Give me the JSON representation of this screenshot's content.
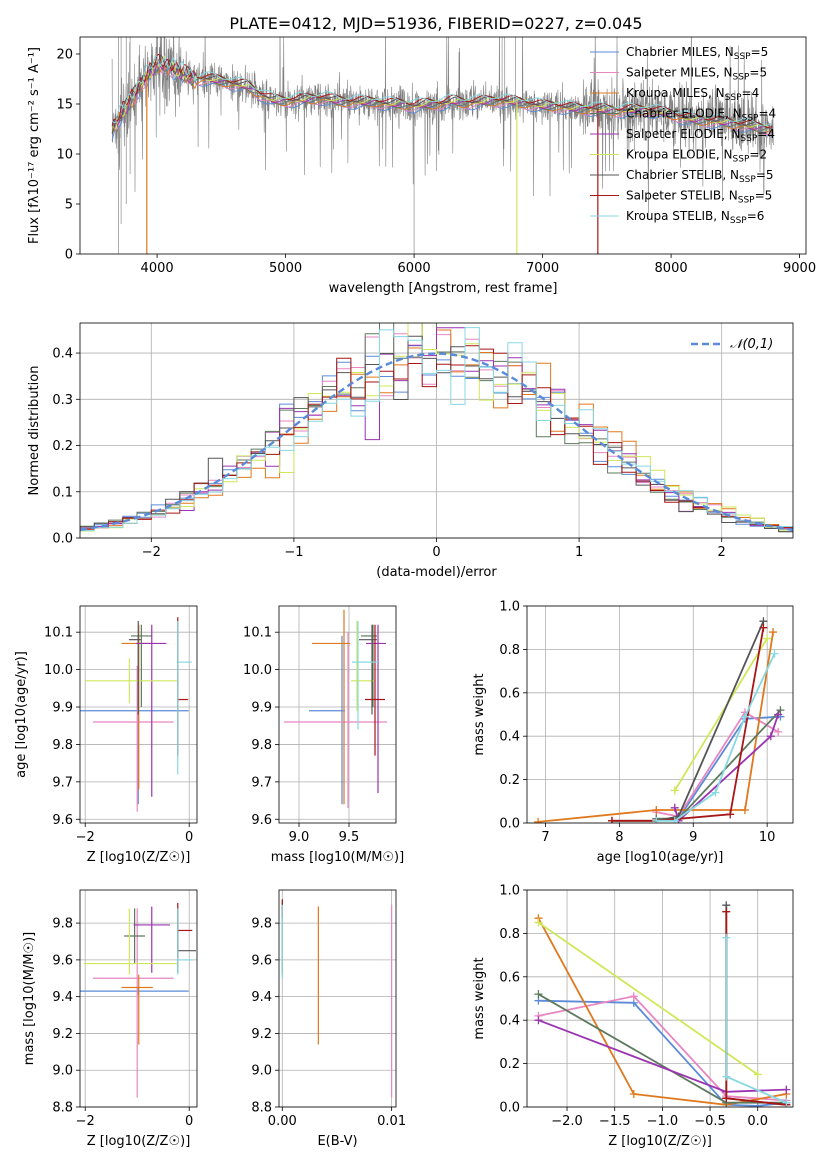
{
  "figure_title": "PLATE=0412, MJD=51936, FIBERID=0227, z=0.045",
  "colors": {
    "Chabrier MILES": "#5b8bd8",
    "Salpeter MILES": "#e886c2",
    "Kroupa MILES": "#e0781e",
    "Chabrier ELODIE": "#5e7a5e",
    "Salpeter ELODIE": "#9b34b0",
    "Kroupa ELODIE": "#cfe85a",
    "Chabrier STELIB": "#555555",
    "Salpeter STELIB": "#a81616",
    "Kroupa STELIB": "#86d8e2"
  },
  "chart_data": [
    {
      "id": "spectrum",
      "type": "line",
      "title": "PLATE=0412, MJD=51936, FIBERID=0227, z=0.045",
      "xlabel": "wavelength [Angstrom, rest frame]",
      "ylabel": "Flux [fλ10⁻¹⁷ erg cm⁻² s⁻¹ A⁻¹]",
      "xlim": [
        3400,
        9050
      ],
      "ylim": [
        0,
        21.7
      ],
      "xticks": [
        4000,
        5000,
        6000,
        7000,
        8000,
        9000
      ],
      "yticks": [
        0,
        5,
        10,
        15,
        20
      ],
      "legend_position": "top-right",
      "legend": [
        {
          "label": "Chabrier MILES, N",
          "sub": "SSP",
          "n": "=5",
          "series": "Chabrier MILES"
        },
        {
          "label": "Salpeter MILES, N",
          "sub": "SSP",
          "n": "=5",
          "series": "Salpeter MILES"
        },
        {
          "label": "Kroupa MILES, N",
          "sub": "SSP",
          "n": "=4",
          "series": "Kroupa MILES"
        },
        {
          "label": "Chabrier ELODIE, N",
          "sub": "SSP",
          "n": "=4",
          "series": "Chabrier ELODIE"
        },
        {
          "label": "Salpeter ELODIE, N",
          "sub": "SSP",
          "n": "=4",
          "series": "Salpeter ELODIE"
        },
        {
          "label": "Kroupa ELODIE, N",
          "sub": "SSP",
          "n": "=2",
          "series": "Kroupa ELODIE"
        },
        {
          "label": "Chabrier STELIB, N",
          "sub": "SSP",
          "n": "=5",
          "series": "Chabrier STELIB"
        },
        {
          "label": "Salpeter STELIB, N",
          "sub": "SSP",
          "n": "=5",
          "series": "Salpeter STELIB"
        },
        {
          "label": "Kroupa STELIB, N",
          "sub": "SSP",
          "n": "=6",
          "series": "Kroupa STELIB"
        }
      ],
      "data_color": "#808080",
      "data_envelope": {
        "wavelength": [
          3650,
          3700,
          3800,
          3900,
          4000,
          4100,
          4200,
          4300,
          4400,
          4500,
          4600,
          4700,
          4800,
          4900,
          5000,
          5100,
          5200,
          5300,
          5400,
          5500,
          5600,
          5700,
          5800,
          5900,
          6000,
          6100,
          6200,
          6300,
          6400,
          6500,
          6600,
          6700,
          6800,
          6900,
          7000,
          7100,
          7200,
          7300,
          7400,
          7500,
          7600,
          7700,
          7800,
          7900,
          8000,
          8100,
          8200,
          8300,
          8400,
          8500,
          8600,
          8700,
          8800
        ],
        "flux": [
          12.5,
          13.5,
          15.5,
          17.5,
          19.0,
          18.8,
          18.0,
          17.5,
          17.5,
          17.3,
          17.0,
          16.8,
          16.0,
          15.4,
          15.3,
          15.4,
          15.5,
          15.6,
          15.3,
          15.2,
          15.2,
          15.2,
          15.0,
          15.0,
          14.8,
          15.0,
          15.0,
          15.3,
          15.1,
          15.2,
          15.3,
          15.3,
          15.2,
          15.0,
          14.8,
          14.8,
          14.6,
          14.5,
          14.5,
          14.4,
          14.3,
          14.4,
          14.4,
          14.2,
          14.0,
          13.6,
          13.4,
          13.3,
          13.2,
          13.0,
          12.8,
          12.6,
          12.5
        ]
      },
      "model_dropouts": [
        {
          "series": "Kroupa MILES",
          "wavelength": 3920
        },
        {
          "series": "Kroupa ELODIE",
          "wavelength": 6800
        },
        {
          "series": "Salpeter STELIB",
          "wavelength": 7430
        }
      ]
    },
    {
      "id": "residuals",
      "type": "step",
      "xlabel": "(data-model)/error",
      "ylabel": "Normed distribution",
      "xlim": [
        -2.5,
        2.5
      ],
      "ylim": [
        0,
        0.465
      ],
      "xticks": [
        -2,
        -1,
        0,
        1,
        2
      ],
      "yticks": [
        0.0,
        0.1,
        0.2,
        0.3,
        0.4
      ],
      "legend": [
        {
          "label": "𝒩(0,1)",
          "style": "dashed",
          "color": "#5b8bd8"
        }
      ],
      "legend_position": "top-right",
      "reference_curve": "standard normal N(0,1)",
      "bin_width": 0.1
    },
    {
      "id": "age-vs-Z",
      "type": "scatter",
      "xlabel": "Z [log10(Z/Z☉)]",
      "ylabel": "age  [log10(age/yr)]",
      "xlim": [
        -2.1,
        0.15
      ],
      "ylim": [
        9.59,
        10.17
      ],
      "xticks": [
        -2,
        0
      ],
      "yticks": [
        9.6,
        9.7,
        9.8,
        9.9,
        10.0,
        10.1
      ],
      "points": [
        {
          "series": "Chabrier MILES",
          "x": -0.98,
          "xerr": [
            1.12,
            0.97
          ],
          "y": 9.89,
          "yerr": [
            0.25,
            0.2
          ]
        },
        {
          "series": "Salpeter MILES",
          "x": -1.0,
          "xerr": [
            0.85,
            0.7
          ],
          "y": 9.86,
          "yerr": [
            0.24,
            0.15
          ]
        },
        {
          "series": "Kroupa MILES",
          "x": -0.97,
          "xerr": [
            0.33,
            0.27
          ],
          "y": 10.07,
          "yerr": [
            0.39,
            0.05
          ]
        },
        {
          "series": "Chabrier ELODIE",
          "x": -0.92,
          "xerr": [
            0.2,
            0.2
          ],
          "y": 10.09,
          "yerr": [
            0.19,
            0.03
          ]
        },
        {
          "series": "Salpeter ELODIE",
          "x": -0.72,
          "xerr": [
            0.3,
            0.28
          ],
          "y": 10.07,
          "yerr": [
            0.41,
            0.05
          ]
        },
        {
          "series": "Kroupa ELODIE",
          "x": -1.15,
          "xerr": [
            0.85,
            0.93
          ],
          "y": 9.97,
          "yerr": [
            0.06,
            0.06
          ]
        },
        {
          "series": "Chabrier STELIB",
          "x": -0.98,
          "xerr": [
            0.18,
            0.05
          ],
          "y": 10.08,
          "yerr": [
            0.2,
            0.05
          ]
        },
        {
          "series": "Salpeter STELIB",
          "x": -0.22,
          "xerr": [
            0.0,
            0.2
          ],
          "y": 9.92,
          "yerr": [
            0.15,
            0.22
          ]
        },
        {
          "series": "Kroupa STELIB",
          "x": -0.22,
          "xerr": [
            0.0,
            0.27
          ],
          "y": 10.02,
          "yerr": [
            0.3,
            0.11
          ]
        }
      ]
    },
    {
      "id": "age-vs-mass",
      "type": "scatter",
      "xlabel": "mass [log10(M/M☉)]",
      "ylabel": "",
      "xlim": [
        8.8,
        9.97
      ],
      "ylim": [
        9.59,
        10.17
      ],
      "xticks": [
        9.0,
        9.5
      ],
      "yticks": [
        9.6,
        9.7,
        9.8,
        9.9,
        10.0,
        10.1
      ],
      "points": [
        {
          "series": "Chabrier MILES",
          "x": 9.43,
          "xerr": [
            0.33,
            0.03
          ],
          "y": 9.89,
          "yerr": [
            0.25,
            0.2
          ]
        },
        {
          "series": "Salpeter MILES",
          "x": 9.49,
          "xerr": [
            0.64,
            0.39
          ],
          "y": 9.86,
          "yerr": [
            0.23,
            0.24
          ]
        },
        {
          "series": "Kroupa MILES",
          "x": 9.45,
          "xerr": [
            0.32,
            0.06
          ],
          "y": 10.07,
          "yerr": [
            0.43,
            0.09
          ]
        },
        {
          "series": "Chabrier ELODIE",
          "x": 9.74,
          "xerr": [
            0.12,
            0.04
          ],
          "y": 10.09,
          "yerr": [
            0.19,
            0.03
          ]
        },
        {
          "series": "Salpeter ELODIE",
          "x": 9.79,
          "xerr": [
            0.12,
            0.08
          ],
          "y": 10.07,
          "yerr": [
            0.4,
            0.05
          ]
        },
        {
          "series": "Kroupa ELODIE",
          "x": 9.58,
          "xerr": [
            0.06,
            0.18
          ],
          "y": 9.97,
          "yerr": [
            0.08,
            0.16
          ]
        },
        {
          "series": "Chabrier STELIB",
          "x": 9.73,
          "xerr": [
            0.13,
            0.05
          ],
          "y": 10.08,
          "yerr": [
            0.2,
            0.04
          ]
        },
        {
          "series": "Salpeter STELIB",
          "x": 9.76,
          "xerr": [
            0.1,
            0.1
          ],
          "y": 9.92,
          "yerr": [
            0.15,
            0.2
          ]
        },
        {
          "series": "Kroupa STELIB",
          "x": 9.59,
          "xerr": [
            0.06,
            0.2
          ],
          "y": 10.02,
          "yerr": [
            0.18,
            0.11
          ]
        }
      ]
    },
    {
      "id": "massweight-vs-age",
      "type": "line",
      "xlabel": "age  [log10(age/yr)]",
      "ylabel": "mass weight",
      "xlim": [
        6.75,
        10.35
      ],
      "ylim": [
        0,
        1.0
      ],
      "xticks": [
        7,
        8,
        9,
        10
      ],
      "yticks": [
        0.0,
        0.2,
        0.4,
        0.6,
        0.8,
        1.0
      ],
      "series": [
        {
          "name": "Chabrier MILES",
          "x": [
            8.5,
            8.8,
            9.7,
            10.18
          ],
          "y": [
            0.01,
            0.02,
            0.48,
            0.49
          ]
        },
        {
          "name": "Salpeter MILES",
          "x": [
            8.5,
            8.8,
            9.7,
            10.15
          ],
          "y": [
            0.05,
            0.03,
            0.51,
            0.42
          ]
        },
        {
          "name": "Kroupa MILES",
          "x": [
            6.9,
            8.5,
            9.7,
            10.08
          ],
          "y": [
            0.005,
            0.06,
            0.06,
            0.88
          ]
        },
        {
          "name": "Chabrier ELODIE",
          "x": [
            8.5,
            8.8,
            10.18
          ],
          "y": [
            0.02,
            0.02,
            0.52
          ]
        },
        {
          "name": "Salpeter ELODIE",
          "x": [
            8.75,
            8.8,
            10.05,
            10.15
          ],
          "y": [
            0.07,
            0.01,
            0.4,
            0.5
          ]
        },
        {
          "name": "Kroupa ELODIE",
          "x": [
            8.75,
            10.0
          ],
          "y": [
            0.15,
            0.85
          ]
        },
        {
          "name": "Chabrier STELIB",
          "x": [
            7.9,
            8.5,
            8.8,
            9.95
          ],
          "y": [
            0.01,
            0.01,
            0.03,
            0.93
          ]
        },
        {
          "name": "Salpeter STELIB",
          "x": [
            7.9,
            8.5,
            9.5,
            9.95
          ],
          "y": [
            0.01,
            0.01,
            0.04,
            0.9
          ]
        },
        {
          "name": "Kroupa STELIB",
          "x": [
            8.5,
            8.75,
            9.3,
            9.7,
            10.1
          ],
          "y": [
            0.01,
            0.01,
            0.14,
            0.49,
            0.78
          ]
        }
      ]
    },
    {
      "id": "mass-vs-Z",
      "type": "scatter",
      "xlabel": "Z [log10(Z/Z☉)]",
      "ylabel": "mass [log10(M/M☉)]",
      "xlim": [
        -2.1,
        0.15
      ],
      "ylim": [
        8.8,
        9.98
      ],
      "xticks": [
        -2,
        0
      ],
      "yticks": [
        8.8,
        9.0,
        9.2,
        9.4,
        9.6,
        9.8
      ],
      "points": [
        {
          "series": "Chabrier MILES",
          "x": -0.98,
          "xerr": [
            1.12,
            0.97
          ],
          "y": 9.43,
          "yerr": [
            0.02,
            0.02
          ]
        },
        {
          "series": "Salpeter MILES",
          "x": -1.0,
          "xerr": [
            0.85,
            0.7
          ],
          "y": 9.5,
          "yerr": [
            0.65,
            0.38
          ]
        },
        {
          "series": "Kroupa MILES",
          "x": -0.97,
          "xerr": [
            0.33,
            0.27
          ],
          "y": 9.45,
          "yerr": [
            0.31,
            0.07
          ]
        },
        {
          "series": "Chabrier ELODIE",
          "x": -1.05,
          "xerr": [
            0.2,
            0.2
          ],
          "y": 9.73,
          "yerr": [
            0.15,
            0.15
          ]
        },
        {
          "series": "Salpeter ELODIE",
          "x": -0.72,
          "xerr": [
            0.35,
            0.35
          ],
          "y": 9.79,
          "yerr": [
            0.26,
            0.1
          ]
        },
        {
          "series": "Kroupa ELODIE",
          "x": -1.15,
          "xerr": [
            0.88,
            0.92
          ],
          "y": 9.58,
          "yerr": [
            0.06,
            0.3
          ]
        },
        {
          "series": "Chabrier STELIB",
          "x": -0.22,
          "xerr": [
            0.0,
            0.35
          ],
          "y": 9.65,
          "yerr": [
            0.12,
            0.23
          ]
        },
        {
          "series": "Salpeter STELIB",
          "x": -0.22,
          "xerr": [
            0.0,
            0.28
          ],
          "y": 9.76,
          "yerr": [
            0.15,
            0.15
          ]
        },
        {
          "series": "Kroupa STELIB",
          "x": -0.22,
          "xerr": [
            0.0,
            0.3
          ],
          "y": 9.6,
          "yerr": [
            0.08,
            0.28
          ]
        }
      ]
    },
    {
      "id": "mass-vs-EBV",
      "type": "scatter",
      "xlabel": "E(B-V)",
      "ylabel": "",
      "xlim": [
        -0.0003,
        0.0104
      ],
      "ylim": [
        8.8,
        9.98
      ],
      "xticks": [
        0.0,
        0.01
      ],
      "xtick_labels": [
        "0.00",
        "0.01"
      ],
      "yticks": [
        8.8,
        9.0,
        9.2,
        9.4,
        9.6,
        9.8
      ],
      "points": [
        {
          "series": "Kroupa MILES",
          "x": 0.0033,
          "y": 9.52,
          "yerr": [
            0.38,
            0.37
          ]
        },
        {
          "series": "Salpeter MILES",
          "x": 0.01,
          "y": 9.4,
          "yerr": [
            0.55,
            0.5
          ]
        },
        {
          "series": "Chabrier ELODIE",
          "x": 0.0,
          "y": 9.72,
          "yerr": [
            0.2,
            0.2
          ]
        },
        {
          "series": "Salpeter STELIB",
          "x": 0.0,
          "y": 9.88,
          "yerr": [
            0.05,
            0.05
          ]
        },
        {
          "series": "Kroupa STELIB",
          "x": 0.0,
          "y": 9.72,
          "yerr": [
            0.22,
            0.18
          ]
        }
      ]
    },
    {
      "id": "massweight-vs-Z",
      "type": "line",
      "xlabel": "Z [log10(Z/Z☉)]",
      "ylabel": "mass weight",
      "xlim": [
        -2.42,
        0.37
      ],
      "ylim": [
        0,
        1.0
      ],
      "xticks": [
        -2.0,
        -1.5,
        -1.0,
        -0.5,
        0.0
      ],
      "xtick_labels": [
        "−2.0",
        "−1.5",
        "−1.0",
        "−0.5",
        "0.0"
      ],
      "yticks": [
        0.0,
        0.2,
        0.4,
        0.6,
        0.8,
        1.0
      ],
      "series": [
        {
          "name": "Chabrier MILES",
          "x": [
            -2.3,
            -1.3,
            -0.33,
            0.0,
            0.3
          ],
          "y": [
            0.49,
            0.48,
            0.01,
            0.005,
            0.02
          ]
        },
        {
          "name": "Salpeter MILES",
          "x": [
            -2.3,
            -1.3,
            -0.33,
            0.3
          ],
          "y": [
            0.42,
            0.51,
            0.05,
            0.03
          ]
        },
        {
          "name": "Kroupa MILES",
          "x": [
            -2.3,
            -1.3,
            -0.33,
            0.3
          ],
          "y": [
            0.87,
            0.06,
            0.01,
            0.06
          ]
        },
        {
          "name": "Chabrier ELODIE",
          "x": [
            -2.3,
            -0.33,
            0.3
          ],
          "y": [
            0.52,
            0.02,
            0.02
          ]
        },
        {
          "name": "Salpeter ELODIE",
          "x": [
            -2.3,
            -0.33,
            0.3
          ],
          "y": [
            0.4,
            0.07,
            0.08
          ]
        },
        {
          "name": "Kroupa ELODIE",
          "x": [
            -2.3,
            0.0
          ],
          "y": [
            0.85,
            0.15
          ]
        },
        {
          "name": "Chabrier STELIB",
          "x": [
            -0.33,
            -0.33,
            0.3
          ],
          "y": [
            0.93,
            0.04,
            0.01
          ]
        },
        {
          "name": "Salpeter STELIB",
          "x": [
            -0.33,
            -0.33,
            0.3
          ],
          "y": [
            0.9,
            0.04,
            0.01
          ]
        },
        {
          "name": "Kroupa STELIB",
          "x": [
            -0.33,
            -0.33,
            0.3
          ],
          "y": [
            0.78,
            0.14,
            0.02
          ]
        }
      ]
    }
  ]
}
